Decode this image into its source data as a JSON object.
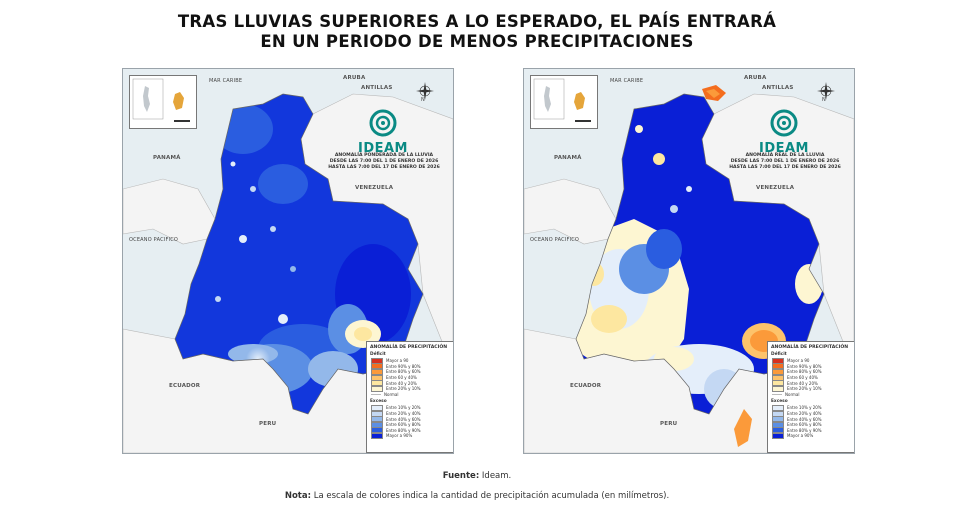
{
  "title_line1": "TRAS LLUVIAS SUPERIORES A LO ESPERADO, EL PAÍS ENTRARÁ",
  "title_line2": "EN UN PERIODO DE MENOS PRECIPITACIONES",
  "colors": {
    "deficit": [
      "#d7301f",
      "#f46d1e",
      "#fb9a3a",
      "#fdc36b",
      "#fde7a0",
      "#fdf6d2"
    ],
    "normal": "#ffffff",
    "excess": [
      "#e4eefa",
      "#c4d8f3",
      "#93b8ea",
      "#5b8fe4",
      "#2a5de0",
      "#0a1fd6"
    ]
  },
  "map_labels": {
    "mar_caribe": "MAR CARIBE",
    "aruba": "ARUBA",
    "antillas": "ANTILLAS",
    "panama": "PANAMÁ",
    "venezuela": "VENEZUELA",
    "oceano": "OCEANO PACIFICO",
    "ecuador": "ECUADOR",
    "peru": "PERU",
    "compass_n": "N"
  },
  "logo_text": "IDEAM",
  "maps": [
    {
      "desc": [
        "ANOMALÍA PONDERADA DE LA LLUVIA",
        "DESDE LAS 7:00 DEL 1 DE ENERO DE 2026",
        "HASTA LAS 7:00 DEL 17 DE ENERO DE 2026"
      ]
    },
    {
      "desc": [
        "ANOMALÍA REAL DE LA LLUVIA",
        "DESDE LAS 7:00 DEL 1 DE ENERO DE 2026",
        "HASTA LAS 7:00 DEL 17 DE ENERO DE 2026"
      ]
    }
  ],
  "legend": {
    "title": "ANOMALÍA DE PRECIPITACIÓN",
    "deficit_label": "Déficit",
    "excess_label": "Exceso",
    "deficit_items": [
      "Mayor a 90",
      "Entre 90% y 80%",
      "Entre 80% y 60%",
      "Entre 60 y 40%",
      "Entre 40 y 20%",
      "Entre 20% y 10%"
    ],
    "normal_item": "Normal",
    "excess_items": [
      "Entre 10% y 20%",
      "Entre 20% y 40%",
      "Entre 40% y 60%",
      "Entre 60% y 80%",
      "Entre 80% y 90%",
      "Mayor a 90%"
    ]
  },
  "footer": {
    "source_label": "Fuente:",
    "source_text": " Ideam.",
    "note_label": "Nota:",
    "note_text": " La escala de colores indica la cantidad de precipitación acumulada (en milímetros)."
  }
}
